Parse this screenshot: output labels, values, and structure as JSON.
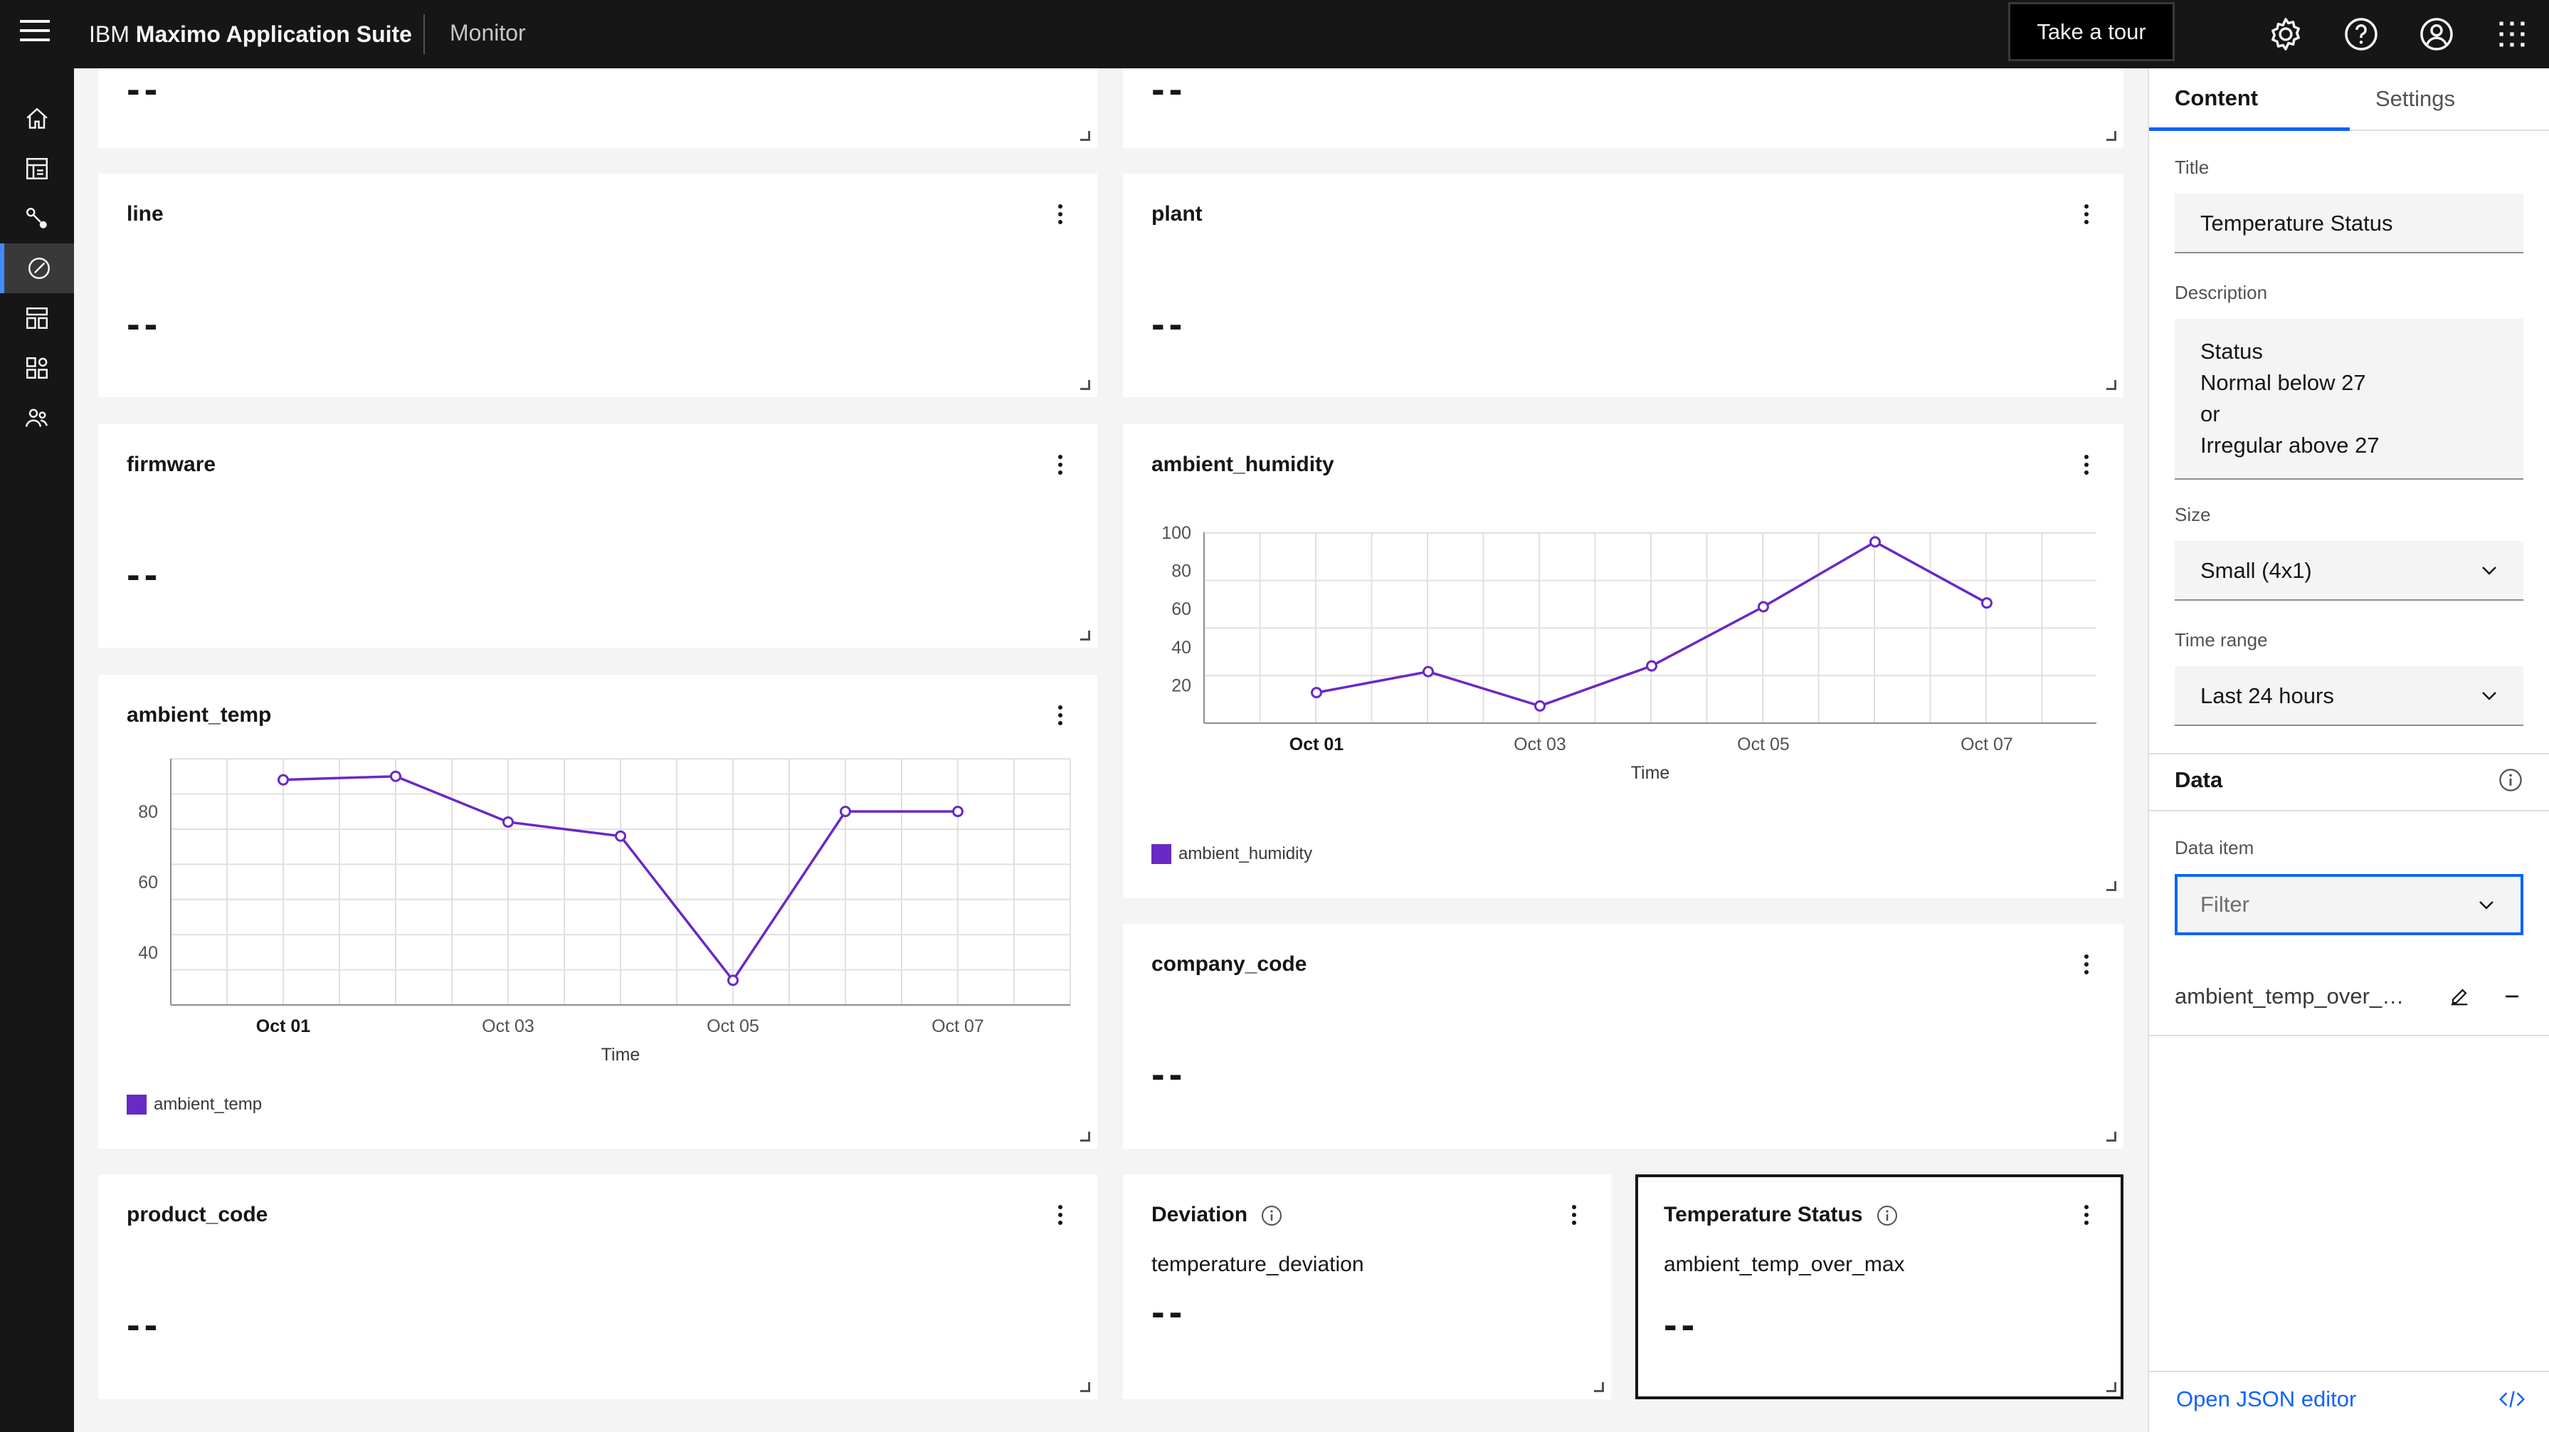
{
  "header": {
    "brand_prefix": "IBM",
    "brand_name": "Maximo Application Suite",
    "module": "Monitor",
    "tour_button": "Take a tour",
    "icons": [
      "gear-icon",
      "help-icon",
      "user-avatar-icon",
      "app-switcher-icon"
    ]
  },
  "rail": {
    "items": [
      "home-icon",
      "dashboard-icon",
      "devices-icon",
      "monitor-icon",
      "setup-icon",
      "assets-icon",
      "users-icon"
    ],
    "active_index": 3
  },
  "cards": {
    "top_left_value": "--",
    "top_right_value": "--",
    "line": {
      "title": "line",
      "value": "--"
    },
    "plant": {
      "title": "plant",
      "value": "--"
    },
    "firmware": {
      "title": "firmware",
      "value": "--"
    },
    "ambient_humidity": {
      "title": "ambient_humidity",
      "legend": "ambient_humidity"
    },
    "ambient_temp": {
      "title": "ambient_temp",
      "legend": "ambient_temp"
    },
    "company_code": {
      "title": "company_code",
      "value": "--"
    },
    "product_code": {
      "title": "product_code",
      "value": "--"
    },
    "deviation": {
      "title": "Deviation",
      "subtitle": "temperature_deviation",
      "value": "--"
    },
    "temperature_status": {
      "title": "Temperature Status",
      "subtitle": "ambient_temp_over_max",
      "value": "--"
    }
  },
  "chart_data": [
    {
      "type": "line",
      "title": "ambient_humidity",
      "xlabel": "Time",
      "ylabel": "",
      "x_ticks": [
        "Oct 01",
        "Oct 03",
        "Oct 05",
        "Oct 07"
      ],
      "ylim": [
        0,
        100
      ],
      "y_ticks": [
        20,
        40,
        60,
        80,
        100
      ],
      "xlim": [
        "Sep 30",
        "Oct 07 12:00"
      ],
      "grid": true,
      "legend_position": "bottom-left",
      "color": "#6929c4",
      "series": [
        {
          "name": "ambient_humidity",
          "x": [
            "Oct 01",
            "Oct 02",
            "Oct 03",
            "Oct 04",
            "Oct 05",
            "Oct 06",
            "Oct 07"
          ],
          "values": [
            16,
            27,
            9,
            30,
            61,
            95,
            63
          ]
        }
      ]
    },
    {
      "type": "line",
      "title": "ambient_temp",
      "xlabel": "Time",
      "ylabel": "",
      "x_ticks": [
        "Oct 01",
        "Oct 03",
        "Oct 05",
        "Oct 07"
      ],
      "ylim": [
        25,
        95
      ],
      "y_ticks": [
        40,
        60,
        80
      ],
      "grid": true,
      "legend_position": "bottom-left",
      "color": "#6929c4",
      "series": [
        {
          "name": "ambient_temp",
          "x": [
            "Oct 01",
            "Oct 02",
            "Oct 03",
            "Oct 04",
            "Oct 05",
            "Oct 06",
            "Oct 07"
          ],
          "values": [
            89,
            90,
            77,
            73,
            32,
            80,
            80
          ]
        }
      ]
    }
  ],
  "panel": {
    "tabs": [
      "Content",
      "Settings"
    ],
    "title_label": "Title",
    "title_value": "Temperature Status",
    "description_label": "Description",
    "description_value": "Status\nNormal   below 27\nor\nIrregular above 27",
    "size_label": "Size",
    "size_value": "Small (4x1)",
    "time_range_label": "Time range",
    "time_range_value": "Last 24 hours",
    "data_section": "Data",
    "data_item_label": "Data item",
    "data_item_placeholder": "Filter",
    "data_item_row": "ambient_temp_over_max",
    "json_editor": "Open JSON editor"
  }
}
